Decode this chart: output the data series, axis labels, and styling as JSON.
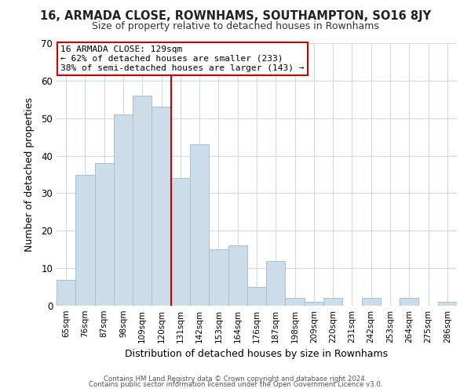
{
  "title": "16, ARMADA CLOSE, ROWNHAMS, SOUTHAMPTON, SO16 8JY",
  "subtitle": "Size of property relative to detached houses in Rownhams",
  "xlabel": "Distribution of detached houses by size in Rownhams",
  "ylabel": "Number of detached properties",
  "bar_labels": [
    "65sqm",
    "76sqm",
    "87sqm",
    "98sqm",
    "109sqm",
    "120sqm",
    "131sqm",
    "142sqm",
    "153sqm",
    "164sqm",
    "176sqm",
    "187sqm",
    "198sqm",
    "209sqm",
    "220sqm",
    "231sqm",
    "242sqm",
    "253sqm",
    "264sqm",
    "275sqm",
    "286sqm"
  ],
  "bar_values": [
    7,
    35,
    38,
    51,
    56,
    53,
    34,
    43,
    15,
    16,
    5,
    12,
    2,
    1,
    2,
    0,
    2,
    0,
    2,
    0,
    1
  ],
  "bar_color": "#ccdce8",
  "bar_edge_color": "#a8c0d4",
  "vline_bar_index": 6,
  "vline_color": "#cc0000",
  "ylim": [
    0,
    70
  ],
  "yticks": [
    0,
    10,
    20,
    30,
    40,
    50,
    60,
    70
  ],
  "annotation_title": "16 ARMADA CLOSE: 129sqm",
  "annotation_line1": "← 62% of detached houses are smaller (233)",
  "annotation_line2": "38% of semi-detached houses are larger (143) →",
  "footer1": "Contains HM Land Registry data © Crown copyright and database right 2024.",
  "footer2": "Contains public sector information licensed under the Open Government Licence v3.0.",
  "background_color": "#ffffff",
  "grid_color": "#d0d8e0"
}
